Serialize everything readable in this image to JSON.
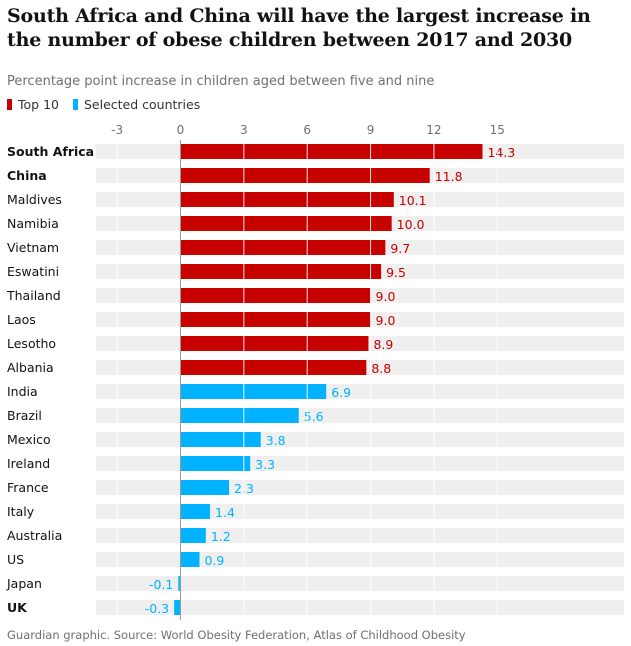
{
  "header": {
    "title": "South Africa and China will have the largest increase in the number of obese children between 2017 and 2030",
    "subtitle": "Percentage point increase in children aged between five and nine"
  },
  "legend": [
    {
      "label": "Top 10",
      "color": "#c70000"
    },
    {
      "label": "Selected countries",
      "color": "#00b2ff"
    }
  ],
  "footer": {
    "source": "Guardian graphic. Source: World Obesity Federation, Atlas of Childhood Obesity"
  },
  "chart_data": {
    "type": "bar",
    "orientation": "horizontal",
    "title": "South Africa and China will have the largest increase in the number of obese children between 2017 and 2030",
    "xlabel": "Percentage point increase in children aged between five and nine",
    "ylabel": "",
    "xlim": [
      -4,
      21
    ],
    "ticks": [
      -3,
      0,
      3,
      6,
      9,
      12,
      15
    ],
    "grid": true,
    "legend_position": "top-left",
    "colors": {
      "Top 10": "#c70000",
      "Selected countries": "#00b2ff",
      "track": "#efefef"
    },
    "categories": [
      "South Africa",
      "China",
      "Maldives",
      "Namibia",
      "Vietnam",
      "Eswatini",
      "Thailand",
      "Laos",
      "Lesotho",
      "Albania",
      "India",
      "Brazil",
      "Mexico",
      "Ireland",
      "France",
      "Italy",
      "Australia",
      "US",
      "Japan",
      "UK"
    ],
    "values": [
      14.3,
      11.8,
      10.1,
      10.0,
      9.7,
      9.5,
      9.0,
      9.0,
      8.9,
      8.8,
      6.9,
      5.6,
      3.8,
      3.3,
      2.3,
      1.4,
      1.2,
      0.9,
      -0.1,
      -0.3
    ],
    "labels": [
      "14.3",
      "11.8",
      "10.1",
      "10.0",
      "9.7",
      "9.5",
      "9.0",
      "9.0",
      "8.9",
      "8.8",
      "6.9",
      "5.6",
      "3.8",
      "3.3",
      "2.3",
      "1.4",
      "1.2",
      "0.9",
      "-0.1",
      "-0.3"
    ],
    "groups": [
      "Top 10",
      "Top 10",
      "Top 10",
      "Top 10",
      "Top 10",
      "Top 10",
      "Top 10",
      "Top 10",
      "Top 10",
      "Top 10",
      "Selected countries",
      "Selected countries",
      "Selected countries",
      "Selected countries",
      "Selected countries",
      "Selected countries",
      "Selected countries",
      "Selected countries",
      "Selected countries",
      "Selected countries"
    ],
    "bold_categories": [
      "South Africa",
      "China",
      "UK"
    ]
  }
}
